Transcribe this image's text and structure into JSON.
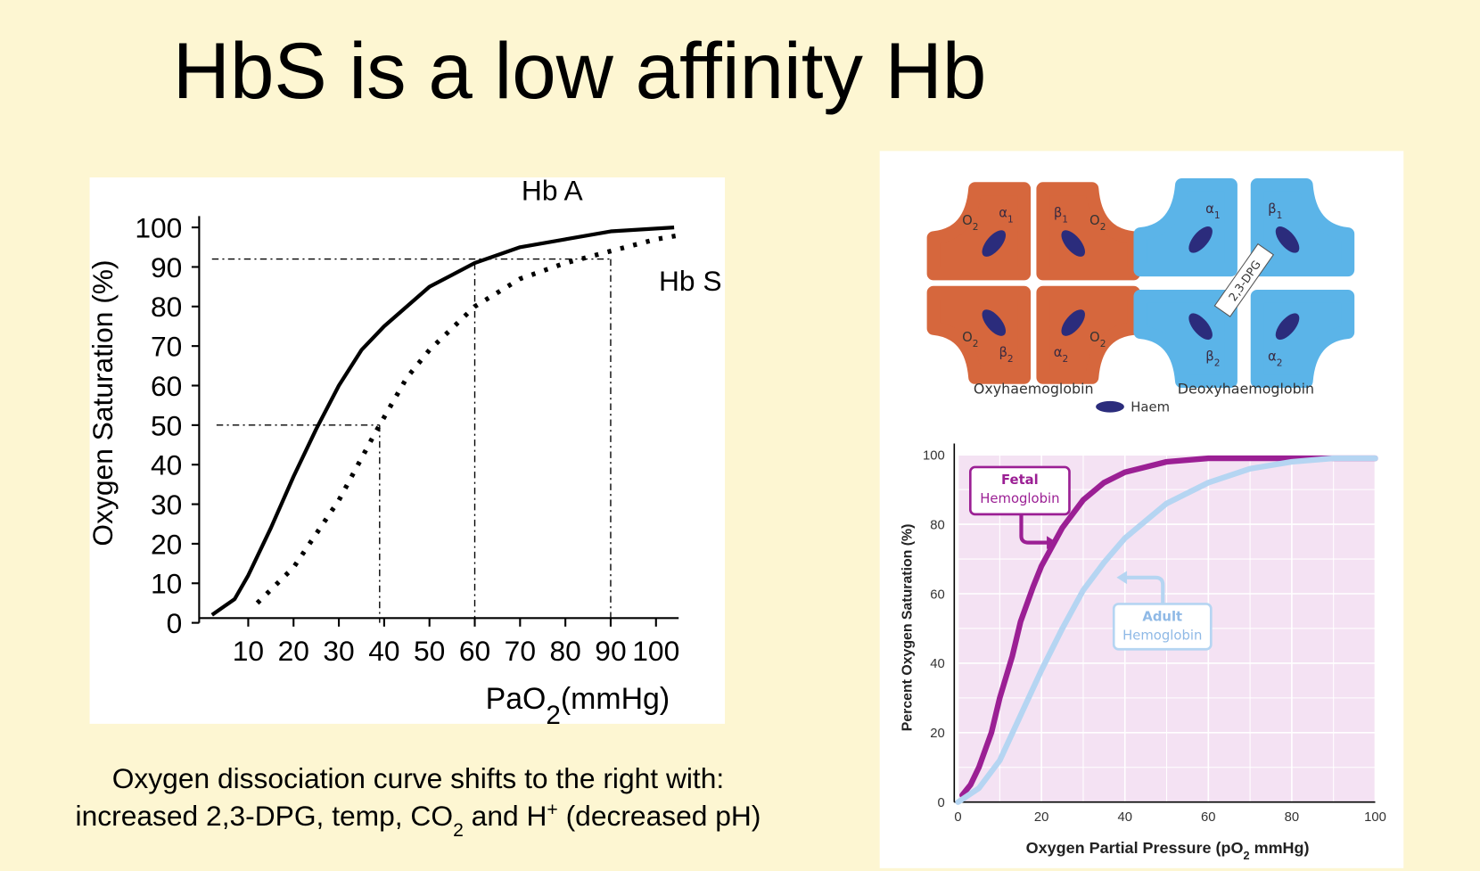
{
  "title": "HbS is a low affinity Hb",
  "caption": {
    "line1": "Oxygen dissociation curve shifts to the right with:",
    "line2": [
      "increased 2,3-DPG, temp, CO",
      "2",
      " and H",
      "+",
      " (decreased pH)"
    ]
  },
  "diagram": {
    "oxy": {
      "label": "Oxyhaemoglobin",
      "o2": [
        [
          "O",
          "2"
        ],
        [
          "O",
          "2"
        ],
        [
          "O",
          "2"
        ],
        [
          "O",
          "2"
        ]
      ],
      "subunits": [
        [
          "α",
          "1"
        ],
        [
          "β",
          "1"
        ],
        [
          "β",
          "2"
        ],
        [
          "α",
          "2"
        ]
      ]
    },
    "deoxy": {
      "label": "Deoxyhaemoglobin",
      "subunits": [
        [
          "α",
          "1"
        ],
        [
          "β",
          "1"
        ],
        [
          "β",
          "2"
        ],
        [
          "α",
          "2"
        ]
      ],
      "dpg": "2,3-DPG"
    },
    "legend": "Haem"
  },
  "chart_data": [
    {
      "type": "line",
      "xlim": [
        0,
        105
      ],
      "ylim": [
        0,
        100
      ],
      "xticks": [
        10,
        20,
        30,
        40,
        50,
        60,
        70,
        80,
        90,
        100
      ],
      "yticks": [
        0,
        10,
        20,
        30,
        40,
        50,
        60,
        70,
        80,
        90,
        100
      ],
      "y_label": "Oxygen Saturation (%)",
      "x_label": [
        "PaO",
        "2",
        "(mmHg)"
      ],
      "series": [
        {
          "name": "Hb A",
          "color": "#000000",
          "style": "solid",
          "x": [
            2,
            7,
            10,
            15,
            20,
            25,
            30,
            35,
            40,
            50,
            60,
            70,
            80,
            90,
            104
          ],
          "values": [
            2,
            6,
            12,
            24,
            37,
            49,
            60,
            69,
            75,
            85,
            91,
            95,
            97,
            99,
            100
          ]
        },
        {
          "name": "Hb S",
          "color": "#000000",
          "style": "dotted",
          "x": [
            12,
            20,
            30,
            38,
            45,
            50,
            60,
            70,
            80,
            90,
            100,
            105
          ],
          "values": [
            5,
            14,
            31,
            48,
            62,
            69,
            80,
            87,
            91,
            94,
            97,
            98
          ]
        }
      ],
      "reference_lines": [
        {
          "x": [
            3,
            39
          ],
          "y": [
            50,
            50
          ]
        },
        {
          "x": [
            39,
            39
          ],
          "y": [
            50,
            0
          ]
        },
        {
          "x": [
            60,
            60
          ],
          "y": [
            91,
            0
          ]
        },
        {
          "x": [
            90,
            90
          ],
          "y": [
            92,
            0
          ]
        },
        {
          "x": [
            2,
            90
          ],
          "y": [
            92,
            92
          ]
        }
      ]
    },
    {
      "type": "line",
      "xlim": [
        0,
        100
      ],
      "ylim": [
        0,
        100
      ],
      "xticks": [
        0,
        20,
        40,
        60,
        80,
        100
      ],
      "yticks": [
        0,
        20,
        40,
        60,
        80,
        100
      ],
      "grid": true,
      "background": "#f4e2f3",
      "y_label": "Percent Oxygen Saturation (%)",
      "x_label": [
        "Oxygen Partial Pressure (pO",
        "2",
        " mmHg)"
      ],
      "series": [
        {
          "name": "Fetal Hemoglobin",
          "color": "#9b1f94",
          "style": "solid",
          "x": [
            1,
            3,
            5,
            8,
            10,
            13,
            15,
            18,
            20,
            25,
            30,
            35,
            40,
            50,
            60,
            70,
            100
          ],
          "values": [
            2,
            5,
            10,
            20,
            30,
            42,
            52,
            62,
            68,
            79,
            87,
            92,
            95,
            98,
            99,
            99,
            99
          ]
        },
        {
          "name": "Adult Hemoglobin",
          "color": "#b5d5f2",
          "style": "solid",
          "x": [
            0,
            5,
            10,
            15,
            20,
            25,
            30,
            35,
            40,
            50,
            60,
            70,
            80,
            90,
            100
          ],
          "values": [
            0,
            4,
            12,
            25,
            38,
            50,
            61,
            69,
            76,
            86,
            92,
            96,
            98,
            99,
            99
          ]
        }
      ]
    }
  ]
}
